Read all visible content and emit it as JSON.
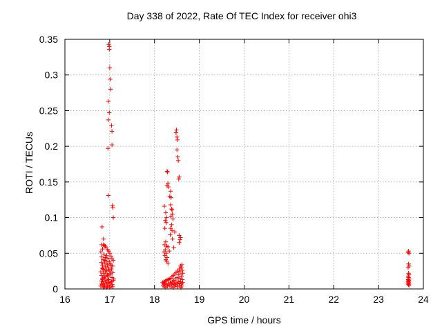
{
  "chart_data": {
    "type": "scatter",
    "title": "Day 338 of 2022, Rate Of TEC Index for receiver ohi3",
    "xlabel": "GPS time / hours",
    "ylabel": "ROTI / TECUs",
    "xlim": [
      16,
      24
    ],
    "ylim": [
      0,
      0.35
    ],
    "xticks": [
      "16",
      "17",
      "18",
      "19",
      "20",
      "21",
      "22",
      "23",
      "24"
    ],
    "yticks": [
      "0",
      "0.05",
      "0.1",
      "0.15",
      "0.2",
      "0.25",
      "0.3",
      "0.35"
    ],
    "grid": true,
    "marker": "+",
    "marker_color": "#ff0000",
    "series": [
      {
        "points": [
          [
            16.98,
            0.343
          ],
          [
            16.99,
            0.34
          ],
          [
            16.99,
            0.336
          ],
          [
            17.0,
            0.31
          ],
          [
            17.01,
            0.294
          ],
          [
            17.02,
            0.28
          ],
          [
            16.97,
            0.263
          ],
          [
            16.99,
            0.247
          ],
          [
            16.97,
            0.237
          ],
          [
            17.04,
            0.229
          ],
          [
            17.05,
            0.221
          ],
          [
            16.96,
            0.197
          ],
          [
            17.05,
            0.202
          ],
          [
            16.97,
            0.131
          ],
          [
            17.06,
            0.117
          ],
          [
            17.07,
            0.114
          ],
          [
            17.08,
            0.1
          ],
          [
            16.83,
            0.087
          ],
          [
            16.86,
            0.07
          ],
          [
            16.82,
            0.062
          ],
          [
            16.86,
            0.062
          ],
          [
            16.88,
            0.061
          ],
          [
            16.9,
            0.06
          ],
          [
            16.92,
            0.058
          ],
          [
            16.84,
            0.056
          ],
          [
            16.95,
            0.055
          ],
          [
            16.98,
            0.053
          ],
          [
            16.8,
            0.052
          ],
          [
            17.0,
            0.05
          ],
          [
            16.87,
            0.049
          ],
          [
            16.93,
            0.047
          ],
          [
            17.03,
            0.046
          ],
          [
            16.82,
            0.045
          ],
          [
            16.9,
            0.044
          ],
          [
            16.96,
            0.043
          ],
          [
            17.05,
            0.042
          ],
          [
            16.85,
            0.041
          ],
          [
            17.08,
            0.04
          ],
          [
            16.92,
            0.039
          ],
          [
            16.99,
            0.038
          ],
          [
            16.81,
            0.037
          ],
          [
            16.88,
            0.036
          ],
          [
            17.02,
            0.035
          ],
          [
            16.95,
            0.034
          ],
          [
            16.84,
            0.033
          ],
          [
            17.06,
            0.032
          ],
          [
            16.9,
            0.031
          ],
          [
            16.97,
            0.03
          ],
          [
            16.83,
            0.029
          ],
          [
            17.04,
            0.028
          ],
          [
            16.87,
            0.027
          ],
          [
            16.93,
            0.026
          ],
          [
            17.0,
            0.025
          ],
          [
            16.8,
            0.024
          ],
          [
            17.07,
            0.023
          ],
          [
            16.86,
            0.022
          ],
          [
            16.94,
            0.021
          ],
          [
            17.01,
            0.02
          ],
          [
            16.82,
            0.019
          ],
          [
            16.89,
            0.018
          ],
          [
            16.96,
            0.017
          ],
          [
            17.05,
            0.016
          ],
          [
            16.84,
            0.015
          ],
          [
            16.91,
            0.014
          ],
          [
            16.98,
            0.013
          ],
          [
            17.08,
            0.012
          ],
          [
            16.81,
            0.011
          ],
          [
            16.87,
            0.01
          ],
          [
            16.94,
            0.009
          ],
          [
            17.02,
            0.009
          ],
          [
            16.85,
            0.008
          ],
          [
            16.92,
            0.007
          ],
          [
            16.99,
            0.007
          ],
          [
            17.06,
            0.006
          ],
          [
            16.83,
            0.006
          ],
          [
            16.89,
            0.005
          ],
          [
            16.96,
            0.005
          ],
          [
            17.03,
            0.004
          ],
          [
            16.8,
            0.004
          ],
          [
            16.88,
            0.003
          ],
          [
            16.95,
            0.003
          ],
          [
            17.07,
            0.003
          ],
          [
            16.86,
            0.002
          ],
          [
            16.93,
            0.002
          ],
          [
            17.0,
            0.002
          ],
          [
            16.84,
            0.013
          ],
          [
            16.97,
            0.011
          ],
          [
            17.04,
            0.01
          ],
          [
            16.91,
            0.012
          ],
          [
            16.82,
            0.008
          ],
          [
            17.09,
            0.014
          ],
          [
            16.87,
            0.016
          ],
          [
            16.95,
            0.019
          ],
          [
            17.01,
            0.022
          ],
          [
            16.9,
            0.024
          ],
          [
            16.98,
            0.027
          ],
          [
            16.85,
            0.028
          ],
          [
            17.03,
            0.033
          ],
          [
            16.92,
            0.036
          ],
          [
            16.89,
            0.04
          ]
        ]
      },
      {
        "points": [
          [
            18.49,
            0.223
          ],
          [
            18.48,
            0.219
          ],
          [
            18.5,
            0.213
          ],
          [
            18.51,
            0.209
          ],
          [
            18.5,
            0.195
          ],
          [
            18.52,
            0.185
          ],
          [
            18.53,
            0.18
          ],
          [
            18.28,
            0.165
          ],
          [
            18.29,
            0.164
          ],
          [
            18.55,
            0.157
          ],
          [
            18.54,
            0.154
          ],
          [
            18.3,
            0.148
          ],
          [
            18.28,
            0.145
          ],
          [
            18.31,
            0.143
          ],
          [
            18.36,
            0.137
          ],
          [
            18.34,
            0.13
          ],
          [
            18.37,
            0.128
          ],
          [
            18.36,
            0.118
          ],
          [
            18.22,
            0.116
          ],
          [
            18.38,
            0.112
          ],
          [
            18.39,
            0.111
          ],
          [
            18.25,
            0.107
          ],
          [
            18.4,
            0.105
          ],
          [
            18.37,
            0.102
          ],
          [
            18.27,
            0.1
          ],
          [
            18.41,
            0.098
          ],
          [
            18.24,
            0.096
          ],
          [
            18.26,
            0.093
          ],
          [
            18.38,
            0.09
          ],
          [
            18.23,
            0.085
          ],
          [
            18.36,
            0.085
          ],
          [
            18.39,
            0.082
          ],
          [
            18.45,
            0.08
          ],
          [
            18.35,
            0.076
          ],
          [
            18.55,
            0.075
          ],
          [
            18.58,
            0.072
          ],
          [
            18.4,
            0.07
          ],
          [
            18.57,
            0.069
          ],
          [
            18.25,
            0.066
          ],
          [
            18.55,
            0.065
          ],
          [
            18.22,
            0.062
          ],
          [
            18.27,
            0.06
          ],
          [
            18.3,
            0.059
          ],
          [
            18.43,
            0.058
          ],
          [
            18.24,
            0.055
          ],
          [
            18.33,
            0.053
          ],
          [
            18.21,
            0.052
          ],
          [
            18.26,
            0.05
          ],
          [
            18.23,
            0.047
          ],
          [
            18.28,
            0.044
          ],
          [
            18.25,
            0.041
          ],
          [
            18.27,
            0.039
          ],
          [
            18.3,
            0.036
          ],
          [
            18.61,
            0.034
          ],
          [
            18.58,
            0.032
          ],
          [
            18.6,
            0.03
          ],
          [
            18.55,
            0.028
          ],
          [
            18.62,
            0.026
          ],
          [
            18.52,
            0.025
          ],
          [
            18.57,
            0.024
          ],
          [
            18.48,
            0.023
          ],
          [
            18.63,
            0.022
          ],
          [
            18.45,
            0.021
          ],
          [
            18.54,
            0.02
          ],
          [
            18.42,
            0.019
          ],
          [
            18.6,
            0.018
          ],
          [
            18.39,
            0.017
          ],
          [
            18.5,
            0.016
          ],
          [
            18.36,
            0.015
          ],
          [
            18.57,
            0.015
          ],
          [
            18.33,
            0.014
          ],
          [
            18.46,
            0.014
          ],
          [
            18.3,
            0.013
          ],
          [
            18.62,
            0.013
          ],
          [
            18.27,
            0.012
          ],
          [
            18.43,
            0.012
          ],
          [
            18.24,
            0.011
          ],
          [
            18.53,
            0.011
          ],
          [
            18.21,
            0.01
          ],
          [
            18.4,
            0.01
          ],
          [
            18.58,
            0.01
          ],
          [
            18.18,
            0.009
          ],
          [
            18.35,
            0.009
          ],
          [
            18.48,
            0.009
          ],
          [
            18.63,
            0.009
          ],
          [
            18.2,
            0.008
          ],
          [
            18.31,
            0.008
          ],
          [
            18.44,
            0.008
          ],
          [
            18.55,
            0.008
          ],
          [
            18.23,
            0.007
          ],
          [
            18.38,
            0.007
          ],
          [
            18.51,
            0.007
          ],
          [
            18.6,
            0.007
          ],
          [
            18.26,
            0.006
          ],
          [
            18.41,
            0.006
          ],
          [
            18.47,
            0.006
          ],
          [
            18.19,
            0.005
          ],
          [
            18.33,
            0.005
          ],
          [
            18.56,
            0.005
          ],
          [
            18.29,
            0.004
          ],
          [
            18.45,
            0.004
          ],
          [
            18.61,
            0.004
          ],
          [
            18.22,
            0.003
          ],
          [
            18.37,
            0.003
          ],
          [
            18.52,
            0.003
          ],
          [
            18.25,
            0.002
          ],
          [
            18.42,
            0.002
          ],
          [
            18.59,
            0.002
          ]
        ]
      },
      {
        "points": [
          [
            23.67,
            0.053
          ],
          [
            23.66,
            0.051
          ],
          [
            23.68,
            0.05
          ],
          [
            23.67,
            0.035
          ],
          [
            23.68,
            0.032
          ],
          [
            23.66,
            0.03
          ],
          [
            23.67,
            0.022
          ],
          [
            23.68,
            0.02
          ],
          [
            23.66,
            0.018
          ],
          [
            23.67,
            0.016
          ],
          [
            23.68,
            0.014
          ],
          [
            23.66,
            0.013
          ],
          [
            23.67,
            0.012
          ],
          [
            23.68,
            0.011
          ],
          [
            23.66,
            0.01
          ],
          [
            23.67,
            0.009
          ],
          [
            23.68,
            0.008
          ],
          [
            23.66,
            0.007
          ],
          [
            23.67,
            0.006
          ],
          [
            23.68,
            0.005
          ]
        ]
      }
    ]
  }
}
